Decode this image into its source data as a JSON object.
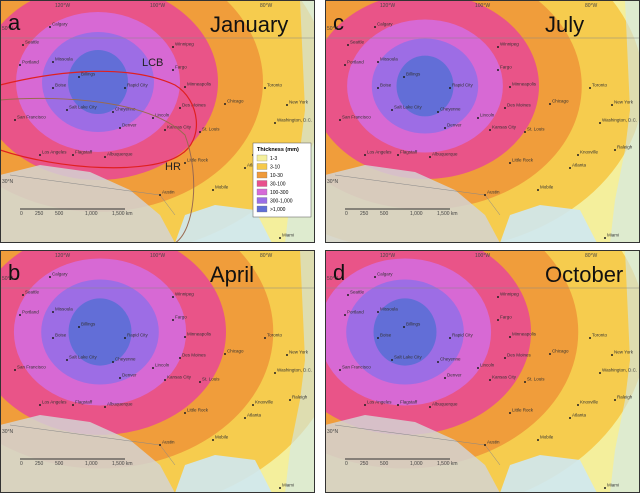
{
  "panels": [
    {
      "letter": "a",
      "month": "January"
    },
    {
      "letter": "c",
      "month": "July"
    },
    {
      "letter": "b",
      "month": "April"
    },
    {
      "letter": "d",
      "month": "October"
    }
  ],
  "cities": [
    "Calgary",
    "Seattle",
    "Portland",
    "Missoula",
    "Billings",
    "Boise",
    "Rapid City",
    "Winnipeg",
    "Fargo",
    "Minneapolis",
    "Toronto",
    "Salt Lake City",
    "Cheyenne",
    "Des Moines",
    "Chicago",
    "New York",
    "San Francisco",
    "Denver",
    "Lincoln",
    "Washington, D.C.",
    "Kansas City",
    "St. Louis",
    "Los Angeles",
    "Flagstaff",
    "Albuquerque",
    "Knoxville",
    "Raleigh",
    "Little Rock",
    "Atlanta",
    "Austin",
    "Mobile",
    "Miami"
  ],
  "graticule": [
    "120°W",
    "100°W",
    "80°W",
    "50°N",
    "30°N"
  ],
  "scale": [
    "0",
    "250",
    "500",
    "1,000",
    "1,500 km"
  ],
  "annotations": [
    "LCB",
    "HR"
  ],
  "legend": {
    "title": "Thickness (mm)",
    "classes": [
      {
        "label": "1-3",
        "color": "#f4ef9c"
      },
      {
        "label": "3-10",
        "color": "#f6c94a"
      },
      {
        "label": "10-30",
        "color": "#ef9a3a"
      },
      {
        "label": "30-100",
        "color": "#e8508c"
      },
      {
        "label": "100-300",
        "color": "#d66ad8"
      },
      {
        "label": "300-1,000",
        "color": "#9a6ee6"
      },
      {
        "label": ">1,000",
        "color": "#5f6fd6"
      }
    ]
  }
}
